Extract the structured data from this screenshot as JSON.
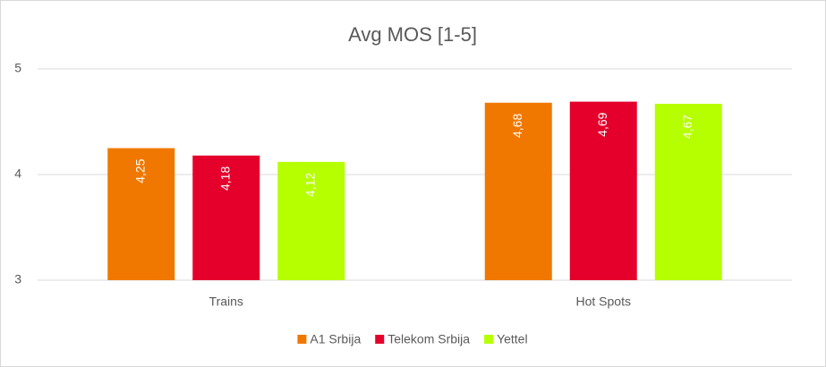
{
  "chart_data": {
    "type": "bar",
    "title": "Avg MOS [1-5]",
    "categories": [
      "Trains",
      "Hot Spots"
    ],
    "series": [
      {
        "name": "A1 Srbija",
        "color": "#f07800",
        "values": [
          4.25,
          4.68
        ],
        "value_labels": [
          "4,25",
          "4,68"
        ]
      },
      {
        "name": "Telekom Srbija",
        "color": "#e4002b",
        "values": [
          4.18,
          4.69
        ],
        "value_labels": [
          "4,18",
          "4,69"
        ]
      },
      {
        "name": "Yettel",
        "color": "#b5ff00",
        "values": [
          4.12,
          4.67
        ],
        "value_labels": [
          "4,12",
          "4,67"
        ]
      }
    ],
    "ylim": [
      3,
      5
    ],
    "yticks": [
      3,
      4,
      5
    ],
    "grid": true,
    "legend": "bottom"
  }
}
